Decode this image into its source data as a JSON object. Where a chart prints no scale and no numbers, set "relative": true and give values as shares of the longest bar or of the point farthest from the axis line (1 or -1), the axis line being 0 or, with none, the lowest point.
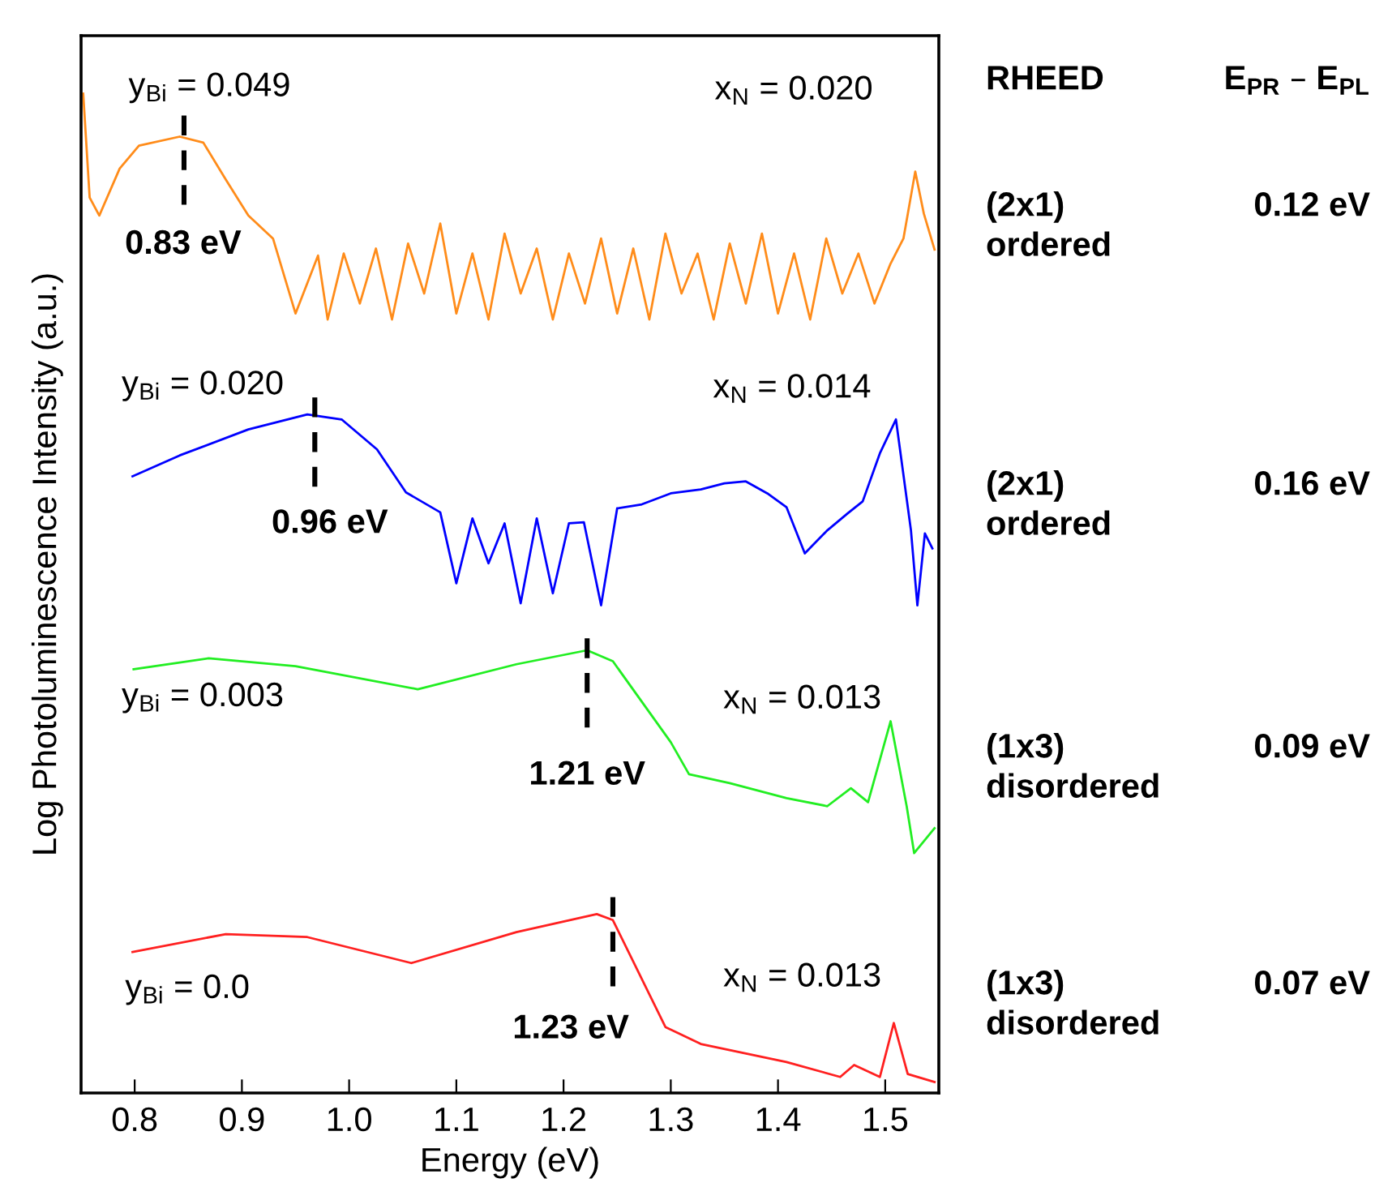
{
  "chart_data": {
    "type": "line",
    "relative": true,
    "xlabel": "Energy (eV)",
    "ylabel": "Log Photoluminescence Intensity (a.u.)",
    "xlim": [
      0.75,
      1.55
    ],
    "xticks": [
      0.8,
      0.9,
      {
        "value": 1,
        "label": "1.0"
      },
      1.1,
      1.2,
      1.3,
      1.4,
      1.5
    ],
    "grid": false,
    "legend": false,
    "marker": "none",
    "line_style": "solid",
    "series": [
      {
        "color": "#ff8c1a",
        "x": [
          0.752,
          0.758,
          0.767,
          0.786,
          0.804,
          0.842,
          0.864,
          0.885,
          0.906,
          0.929,
          0.95,
          0.971,
          0.98,
          0.995,
          1.01,
          1.025,
          1.04,
          1.055,
          1.07,
          1.085,
          1.1,
          1.115,
          1.13,
          1.145,
          1.16,
          1.175,
          1.19,
          1.205,
          1.22,
          1.235,
          1.25,
          1.265,
          1.28,
          1.295,
          1.31,
          1.325,
          1.34,
          1.355,
          1.37,
          1.385,
          1.4,
          1.415,
          1.43,
          1.445,
          1.46,
          1.475,
          1.49,
          1.505,
          1.517,
          1.528,
          1.536,
          1.546
        ],
        "values": [
          1.0,
          0.896,
          0.878,
          0.925,
          0.948,
          0.957,
          0.951,
          0.914,
          0.878,
          0.855,
          0.78,
          0.838,
          0.774,
          0.84,
          0.79,
          0.845,
          0.774,
          0.85,
          0.8,
          0.87,
          0.78,
          0.84,
          0.774,
          0.86,
          0.8,
          0.845,
          0.774,
          0.84,
          0.79,
          0.855,
          0.78,
          0.845,
          0.774,
          0.86,
          0.8,
          0.84,
          0.774,
          0.85,
          0.79,
          0.86,
          0.78,
          0.84,
          0.774,
          0.855,
          0.8,
          0.84,
          0.79,
          0.83,
          0.855,
          0.922,
          0.88,
          0.844
        ]
      },
      {
        "color": "#0000ff",
        "x": [
          0.798,
          0.842,
          0.906,
          0.961,
          0.993,
          1.026,
          1.053,
          1.085,
          1.1,
          1.115,
          1.13,
          1.145,
          1.16,
          1.175,
          1.19,
          1.205,
          1.219,
          1.235,
          1.25,
          1.273,
          1.3,
          1.328,
          1.35,
          1.37,
          1.39,
          1.408,
          1.425,
          1.446,
          1.465,
          1.479,
          1.495,
          1.51,
          1.524,
          1.53,
          1.537,
          1.544
        ],
        "values": [
          0.617,
          0.638,
          0.664,
          0.679,
          0.674,
          0.644,
          0.601,
          0.581,
          0.51,
          0.575,
          0.53,
          0.57,
          0.49,
          0.575,
          0.5,
          0.57,
          0.571,
          0.488,
          0.585,
          0.589,
          0.6,
          0.604,
          0.61,
          0.612,
          0.6,
          0.586,
          0.54,
          0.563,
          0.58,
          0.592,
          0.64,
          0.674,
          0.563,
          0.488,
          0.56,
          0.545
        ]
      },
      {
        "color": "#22ee22",
        "x": [
          0.799,
          0.869,
          0.95,
          1.064,
          1.156,
          1.222,
          1.246,
          1.3,
          1.317,
          1.355,
          1.408,
          1.446,
          1.468,
          1.484,
          1.505,
          1.52,
          1.527,
          1.546
        ],
        "values": [
          0.424,
          0.435,
          0.427,
          0.404,
          0.429,
          0.443,
          0.432,
          0.351,
          0.319,
          0.31,
          0.295,
          0.287,
          0.305,
          0.291,
          0.372,
          0.287,
          0.24,
          0.265
        ]
      },
      {
        "color": "#ff2020",
        "x": [
          0.798,
          0.885,
          0.961,
          1.058,
          1.156,
          1.231,
          1.246,
          1.295,
          1.328,
          1.408,
          1.458,
          1.471,
          1.495,
          1.508,
          1.521,
          1.546
        ],
        "values": [
          0.141,
          0.159,
          0.156,
          0.13,
          0.161,
          0.179,
          0.173,
          0.066,
          0.049,
          0.031,
          0.016,
          0.028,
          0.016,
          0.07,
          0.019,
          0.011
        ]
      },
      {
        "color": "#000000",
        "line_style": "dashed",
        "x": [
          0.846,
          0.846
        ],
        "values": [
          0.978,
          0.887
        ]
      },
      {
        "color": "#000000",
        "line_style": "dashed",
        "x": [
          0.968,
          0.968
        ],
        "values": [
          0.696,
          0.604
        ]
      },
      {
        "color": "#000000",
        "line_style": "dashed",
        "x": [
          1.222,
          1.222
        ],
        "values": [
          0.455,
          0.365
        ]
      },
      {
        "color": "#000000",
        "line_style": "dashed",
        "x": [
          1.246,
          1.246
        ],
        "values": [
          0.196,
          0.104
        ]
      }
    ],
    "annotations": [
      "y$_{Bi}$ = 0.049",
      "x$_{N}$ = 0.020",
      "0.83 eV",
      "y$_{Bi}$ = 0.020",
      "x$_{N}$ = 0.014",
      "0.96 eV",
      "y$_{Bi}$ = 0.003",
      "x$_{N}$ = 0.013",
      "1.21 eV",
      "y$_{Bi}$ = 0.0",
      "x$_{N}$ = 0.013",
      "1.23 eV",
      "RHEED",
      "E$_{PR}$ – E$_{PL}$",
      "(2x1)\nordered",
      "0.12 eV",
      "(2x1)\nordered",
      "0.16 eV",
      "(1x3)\ndisordered",
      "0.09 eV",
      "(1x3)\ndisordered",
      "0.07 eV"
    ]
  }
}
